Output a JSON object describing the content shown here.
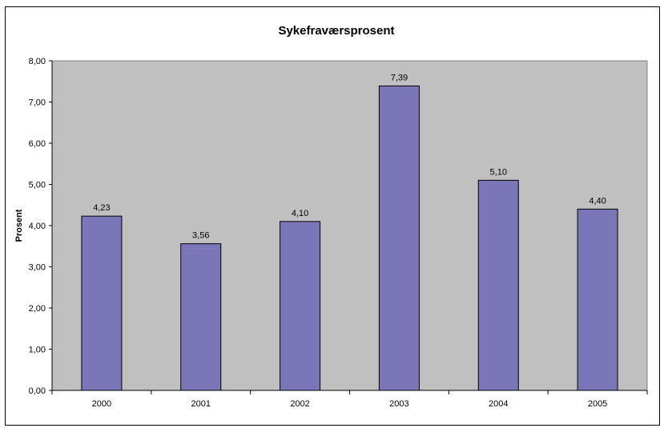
{
  "chart_data": {
    "type": "bar",
    "title": "Sykefraværsprosent",
    "xlabel": "",
    "ylabel": "Prosent",
    "categories": [
      "2000",
      "2001",
      "2002",
      "2003",
      "2004",
      "2005"
    ],
    "values": [
      4.23,
      3.56,
      4.1,
      7.39,
      5.1,
      4.4
    ],
    "data_labels": [
      "4,23",
      "3,56",
      "4,10",
      "7,39",
      "5,10",
      "4,40"
    ],
    "ylim": [
      0,
      8
    ],
    "yticks": [
      "0,00",
      "1,00",
      "2,00",
      "3,00",
      "4,00",
      "5,00",
      "6,00",
      "7,00",
      "8,00"
    ],
    "grid": false,
    "legend": "none",
    "colors": {
      "bar_fill": "#7b76b8",
      "bar_stroke": "#000000",
      "plot_background": "#c0c0c0"
    }
  }
}
